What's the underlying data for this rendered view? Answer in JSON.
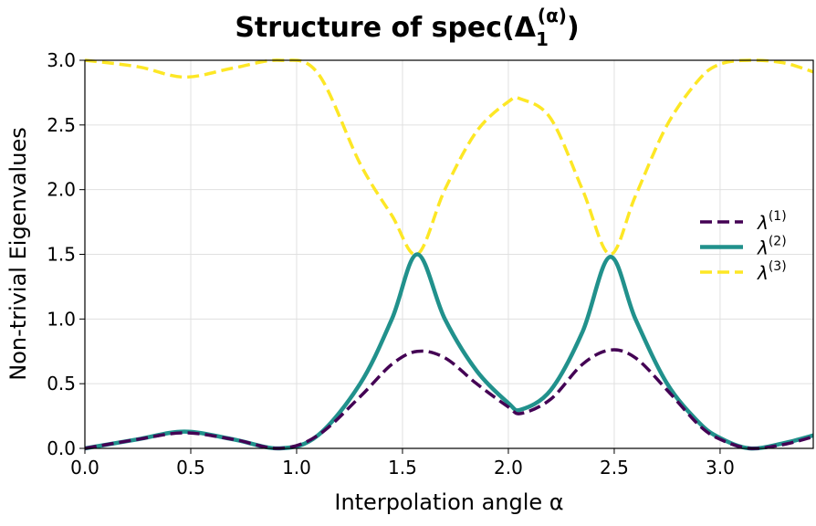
{
  "chart_data": {
    "type": "line",
    "title": "Structure of spec(Δ",
    "title_sub": "1",
    "title_sup": "(α)",
    "title_end": ")",
    "xlabel": "Interpolation angle α",
    "ylabel": "Non-trivial Eigenvalues",
    "xlim": [
      0,
      3.44
    ],
    "ylim": [
      0,
      3.0
    ],
    "xticks": [
      "0.0",
      "0.5",
      "1.0",
      "1.5",
      "2.0",
      "2.5",
      "3.0"
    ],
    "yticks": [
      "0.0",
      "0.5",
      "1.0",
      "1.5",
      "2.0",
      "2.5",
      "3.0"
    ],
    "grid": true,
    "legend_placement": "center-right",
    "x": [
      0,
      0.25,
      0.47,
      0.7,
      0.92,
      1.1,
      1.3,
      1.45,
      1.57,
      1.7,
      1.85,
      2.0,
      2.06,
      2.2,
      2.35,
      2.48,
      2.6,
      2.75,
      2.9,
      3.0,
      3.14,
      3.3,
      3.44
    ],
    "series": [
      {
        "name": "λ",
        "sup": "(1)",
        "color": "#440154",
        "style": "dashed",
        "values": [
          0,
          0.07,
          0.12,
          0.07,
          0.0,
          0.1,
          0.4,
          0.65,
          0.75,
          0.7,
          0.5,
          0.32,
          0.27,
          0.38,
          0.65,
          0.76,
          0.7,
          0.45,
          0.18,
          0.07,
          0.0,
          0.03,
          0.09
        ]
      },
      {
        "name": "λ",
        "sup": "(2)",
        "color": "#21918c",
        "style": "solid",
        "values": [
          0,
          0.07,
          0.13,
          0.07,
          0.0,
          0.1,
          0.5,
          1.0,
          1.5,
          1.0,
          0.6,
          0.35,
          0.3,
          0.45,
          0.9,
          1.48,
          1.0,
          0.5,
          0.2,
          0.08,
          0.0,
          0.04,
          0.1
        ]
      },
      {
        "name": "λ",
        "sup": "(3)",
        "color": "#fde725",
        "style": "dashed",
        "values": [
          3.0,
          2.95,
          2.87,
          2.94,
          3.0,
          2.9,
          2.2,
          1.8,
          1.5,
          2.0,
          2.45,
          2.68,
          2.7,
          2.55,
          2.0,
          1.5,
          1.95,
          2.5,
          2.85,
          2.97,
          3.0,
          2.98,
          2.91
        ]
      }
    ]
  }
}
